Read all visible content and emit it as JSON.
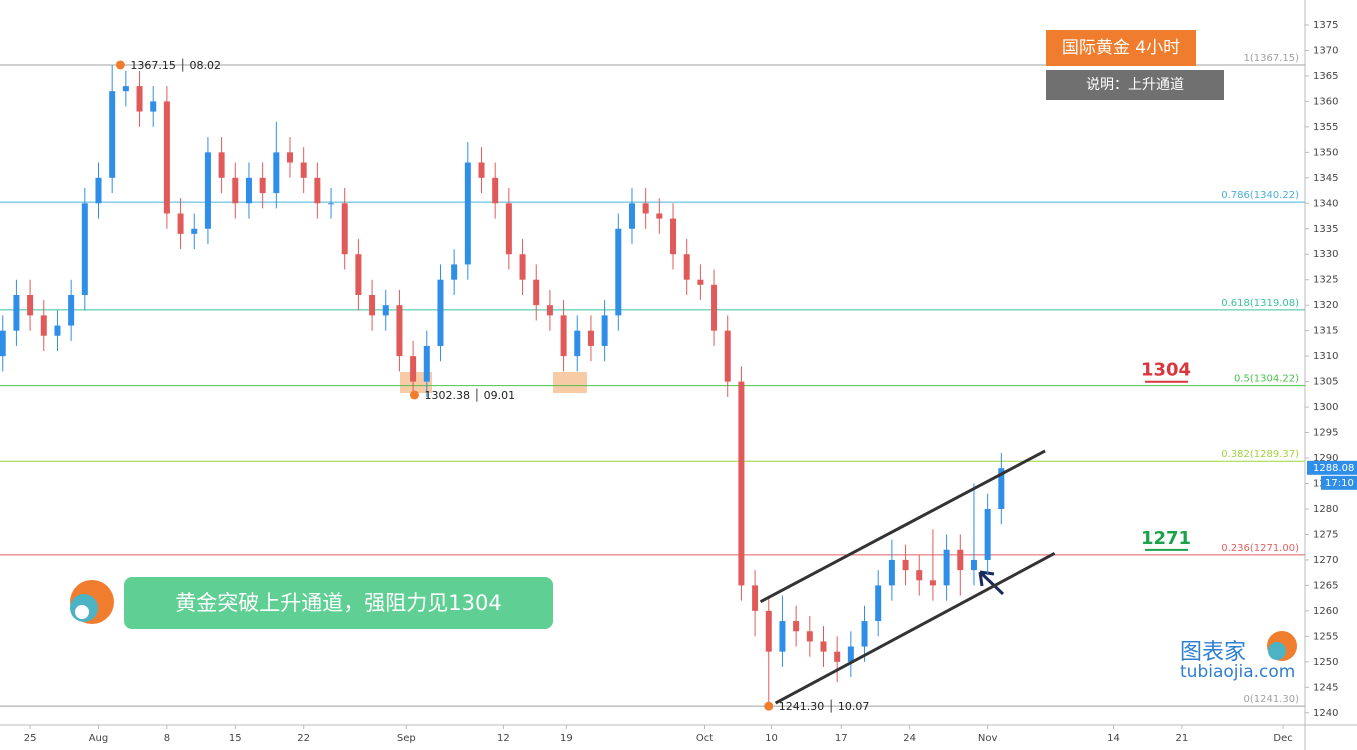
{
  "chart_data": {
    "type": "candlestick",
    "header": "国际黄金  4小时",
    "note": "说明：上升通道",
    "message": "黄金突破上升通道，强阻力见1304",
    "watermark": {
      "name": "图表家",
      "site": "tubiaojia.com"
    },
    "xlim": [
      -2.2,
      93.2
    ],
    "xticks": [
      {
        "value": 0,
        "label": "25"
      },
      {
        "value": 5,
        "label": "Aug"
      },
      {
        "value": 10,
        "label": "8"
      },
      {
        "value": 15,
        "label": "15"
      },
      {
        "value": 20,
        "label": "22"
      },
      {
        "value": 27.5,
        "label": "Sep"
      },
      {
        "value": 34.6,
        "label": "12"
      },
      {
        "value": 39.2,
        "label": "19"
      },
      {
        "value": 49.3,
        "label": "Oct"
      },
      {
        "value": 54.2,
        "label": "10"
      },
      {
        "value": 59.3,
        "label": "17"
      },
      {
        "value": 64.3,
        "label": "24"
      },
      {
        "value": 70,
        "label": "Nov"
      },
      {
        "value": 79.2,
        "label": "14"
      },
      {
        "value": 84.2,
        "label": "21"
      },
      {
        "value": 91.6,
        "label": "Dec"
      }
    ],
    "ylim": [
      1237.6,
      1379.9
    ],
    "yticks": [
      1240,
      1245,
      1250,
      1255,
      1260,
      1265,
      1270,
      1275,
      1280,
      1285,
      1290,
      1295,
      1300,
      1305,
      1310,
      1315,
      1320,
      1325,
      1330,
      1335,
      1340,
      1345,
      1350,
      1355,
      1360,
      1365,
      1370,
      1375
    ],
    "up_color": "#2f8ee8",
    "down_color": "#e05a5a",
    "x": [
      -2,
      -1,
      0,
      1,
      2,
      3,
      4,
      5,
      6,
      7,
      8,
      9,
      10,
      11,
      12,
      13,
      14,
      15,
      16,
      17,
      18,
      19,
      20,
      21,
      22,
      23,
      24,
      25,
      26,
      27,
      28,
      29,
      30,
      31,
      32,
      33,
      34,
      35,
      36,
      37,
      38,
      39,
      40,
      41,
      42,
      43,
      44,
      45,
      46,
      47,
      48,
      49,
      50,
      51,
      52,
      53,
      54,
      55,
      56,
      57,
      58,
      59,
      60,
      61,
      62,
      63,
      64,
      65,
      66,
      67,
      68,
      69,
      70,
      71
    ],
    "open": [
      1310,
      1315,
      1322,
      1318,
      1314,
      1316,
      1322,
      1340,
      1345,
      1362,
      1363,
      1358,
      1360,
      1338,
      1334,
      1335,
      1350,
      1345,
      1340,
      1345,
      1342,
      1350,
      1348,
      1345,
      1340,
      1340,
      1330,
      1322,
      1318,
      1320,
      1310,
      1305,
      1312,
      1325,
      1328,
      1348,
      1345,
      1340,
      1330,
      1325,
      1320,
      1318,
      1310,
      1315,
      1312,
      1318,
      1335,
      1340,
      1338,
      1337,
      1330,
      1325,
      1324,
      1315,
      1305,
      1265,
      1260,
      1252,
      1258,
      1256,
      1254,
      1252,
      1250,
      1253,
      1258,
      1265,
      1270,
      1268,
      1266,
      1265,
      1272,
      1268,
      1270,
      1280
    ],
    "high": [
      1318,
      1325,
      1325,
      1321,
      1319,
      1325,
      1343,
      1348,
      1367.15,
      1366,
      1366,
      1363,
      1363,
      1341,
      1338,
      1353,
      1353,
      1348,
      1348,
      1348,
      1356,
      1353,
      1351,
      1348,
      1343,
      1343,
      1333,
      1325,
      1323,
      1323,
      1313,
      1315,
      1328,
      1331,
      1352,
      1351,
      1348,
      1343,
      1333,
      1328,
      1323,
      1321,
      1318,
      1318,
      1321,
      1338,
      1343,
      1343,
      1341,
      1340,
      1333,
      1328,
      1327,
      1318,
      1308,
      1268,
      1263,
      1263,
      1261,
      1259,
      1257,
      1255,
      1256,
      1261,
      1268,
      1274,
      1273,
      1271,
      1276,
      1275,
      1275,
      1285,
      1283,
      1291
    ],
    "low": [
      1307,
      1312,
      1315,
      1311,
      1311,
      1313,
      1319,
      1337,
      1342,
      1359,
      1355,
      1355,
      1335,
      1331,
      1331,
      1332,
      1342,
      1337,
      1337,
      1339,
      1339,
      1345,
      1342,
      1337,
      1337,
      1327,
      1319,
      1315,
      1315,
      1307,
      1302.38,
      1302,
      1309,
      1322,
      1325,
      1342,
      1337,
      1327,
      1322,
      1317,
      1315,
      1307,
      1307,
      1309,
      1309,
      1315,
      1332,
      1335,
      1334,
      1327,
      1322,
      1321,
      1312,
      1302,
      1262,
      1255,
      1241.3,
      1249,
      1253,
      1251,
      1249,
      1246,
      1247,
      1250,
      1255,
      1262,
      1265,
      1263,
      1262,
      1262,
      1263,
      1265,
      1267,
      1277
    ],
    "close": [
      1315,
      1322,
      1318,
      1314,
      1316,
      1322,
      1340,
      1345,
      1362,
      1363,
      1358,
      1360,
      1338,
      1334,
      1335,
      1350,
      1345,
      1340,
      1345,
      1342,
      1350,
      1348,
      1345,
      1340,
      1340,
      1330,
      1322,
      1318,
      1320,
      1310,
      1305,
      1312,
      1325,
      1328,
      1348,
      1345,
      1340,
      1330,
      1325,
      1320,
      1318,
      1310,
      1315,
      1312,
      1318,
      1335,
      1340,
      1338,
      1337,
      1330,
      1325,
      1324,
      1315,
      1305,
      1265,
      1260,
      1252,
      1258,
      1256,
      1254,
      1252,
      1250,
      1253,
      1258,
      1265,
      1270,
      1268,
      1266,
      1265,
      1272,
      1268,
      1270,
      1280,
      1288
    ],
    "fib": [
      {
        "label": "1(1367.15)",
        "value": 1367.15,
        "color": "#a0a0a0"
      },
      {
        "label": "0.786(1340.22)",
        "value": 1340.22,
        "color": "#4ab0d8"
      },
      {
        "label": "0.618(1319.08)",
        "value": 1319.08,
        "color": "#36c39c"
      },
      {
        "label": "0.5(1304.22)",
        "value": 1304.22,
        "color": "#4cc24c"
      },
      {
        "label": "0.382(1289.37)",
        "value": 1289.37,
        "color": "#9ed43a"
      },
      {
        "label": "0.236(1271.00)",
        "value": 1271,
        "color": "#e06060"
      },
      {
        "label": "0(1241.30)",
        "value": 1241.3,
        "color": "#a0a0a0"
      }
    ],
    "levels": [
      {
        "value": 1304,
        "color": "#d9363e"
      },
      {
        "value": 1271,
        "color": "#1aa34a"
      }
    ],
    "extremes": [
      {
        "x": 6.6,
        "value": 1367.15,
        "label": "1367.15 │ 08.02"
      },
      {
        "x": 28.1,
        "value": 1302.38,
        "label": "1302.38 │ 09.01"
      },
      {
        "x": 54,
        "value": 1241.3,
        "label": "1241.30 │ 10.07"
      }
    ],
    "channel": [
      {
        "x": [
          53.4,
          74.2
        ],
        "values": [
          1261.8,
          1291.4
        ]
      },
      {
        "x": [
          54.5,
          74.9
        ],
        "values": [
          1241.9,
          1271.3
        ]
      }
    ],
    "last_price": 1288.08,
    "time_left": "17:10"
  }
}
